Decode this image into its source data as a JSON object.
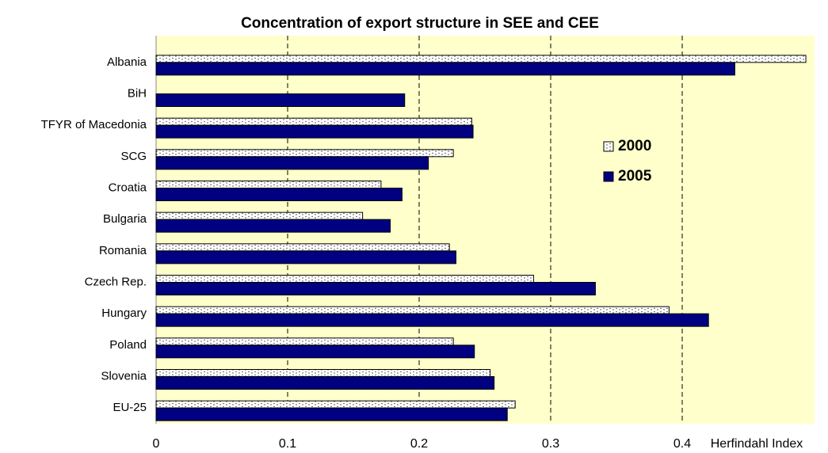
{
  "chart_data": {
    "type": "bar",
    "orientation": "horizontal",
    "title": "Concentration of export structure in SEE and CEE",
    "x_label": "Herfindahl Index",
    "categories": [
      "Albania",
      "BiH",
      "TFYR of Macedonia",
      "SCG",
      "Croatia",
      "Bulgaria",
      "Romania",
      "Czech Rep.",
      "Hungary",
      "Poland",
      "Slovenia",
      "EU-25"
    ],
    "series": [
      {
        "name": "2000",
        "color": "#ffffff",
        "pattern": "dotted",
        "values": [
          0.494,
          null,
          0.24,
          0.226,
          0.171,
          0.157,
          0.223,
          0.287,
          0.39,
          0.226,
          0.254,
          0.273
        ]
      },
      {
        "name": "2005",
        "color": "#000080",
        "values": [
          0.44,
          0.189,
          0.241,
          0.207,
          0.187,
          0.178,
          0.228,
          0.334,
          0.42,
          0.242,
          0.257,
          0.267
        ]
      }
    ],
    "xlim": [
      0,
      0.5
    ],
    "xticks": [
      0,
      0.1,
      0.2,
      0.3,
      0.4
    ],
    "grid": true,
    "legend": "right"
  }
}
